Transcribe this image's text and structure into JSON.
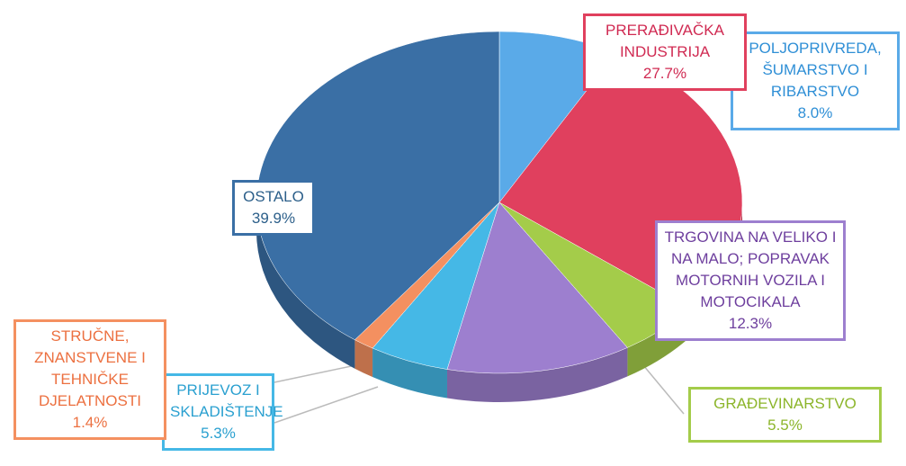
{
  "chart_data": {
    "type": "pie",
    "categories": [
      "POLJOPRIVREDA, ŠUMARSTVO I RIBARSTVO",
      "PRERAĐIVAČKA INDUSTRIJA",
      "GRAĐEVINARSTVO",
      "TRGOVINA NA VELIKO I NA MALO; POPRAVAK MOTORNIH VOZILA I MOTOCIKALA",
      "PRIJEVOZ I SKLADIŠTENJE",
      "STRUČNE, ZNANSTVENE I TEHNIČKE DJELATNOSTI",
      "OSTALO"
    ],
    "values": [
      8.0,
      27.7,
      5.5,
      12.3,
      5.3,
      1.4,
      39.9
    ],
    "value_labels": [
      "8.0%",
      "27.7%",
      "5.5%",
      "12.3%",
      "5.3%",
      "1.4%",
      "39.9%"
    ],
    "colors": [
      "#5aaae8",
      "#e0405e",
      "#a4cc4a",
      "#9d7fcf",
      "#45b8e6",
      "#f49060",
      "#3a6fa5"
    ]
  }
}
